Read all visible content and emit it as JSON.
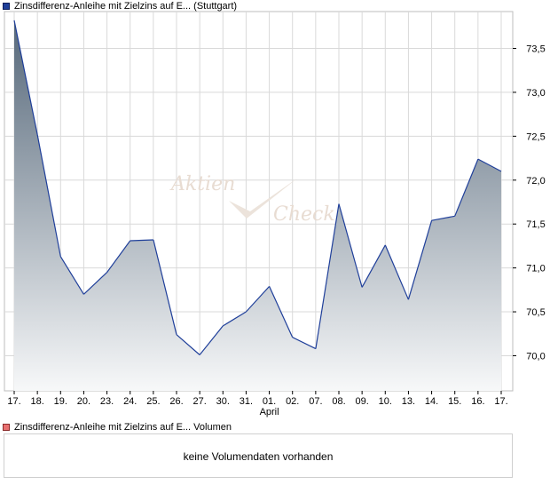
{
  "legend": {
    "price_label": "Zinsdifferenz-Anleihe mit Zielzins auf E...  (Stuttgart)",
    "volume_label": "Zinsdifferenz-Anleihe mit Zielzins auf E...  Volumen"
  },
  "watermark": {
    "line1": "Aktien",
    "line2": "Check"
  },
  "volume": {
    "message": "keine Volumendaten vorhanden"
  },
  "colors": {
    "line": "#1f3f9a",
    "area_top": "#56687a",
    "area_bottom": "#f7f8f9",
    "grid": "#d9d9d9"
  },
  "chart_data": {
    "type": "area",
    "x": [
      "17.",
      "18.",
      "19.",
      "20.",
      "23.",
      "24.",
      "25.",
      "26.",
      "27.",
      "30.",
      "31.",
      "01.",
      "02.",
      "07.",
      "08.",
      "09.",
      "10.",
      "13.",
      "14.",
      "15.",
      "16.",
      "17."
    ],
    "month_label": "April",
    "month_label_after": "01.",
    "values": [
      73.82,
      72.52,
      71.13,
      70.7,
      70.95,
      71.31,
      71.32,
      70.24,
      70.01,
      70.34,
      70.5,
      70.79,
      70.21,
      70.08,
      71.73,
      70.78,
      71.26,
      70.64,
      71.54,
      71.59,
      72.24,
      72.1
    ],
    "y_ticks": [
      "70,0",
      "70,5",
      "71,0",
      "71,5",
      "72,0",
      "72,5",
      "73,0",
      "73,5"
    ],
    "ylim": [
      69.6,
      73.92
    ],
    "y_axis": "right",
    "grid": true
  }
}
